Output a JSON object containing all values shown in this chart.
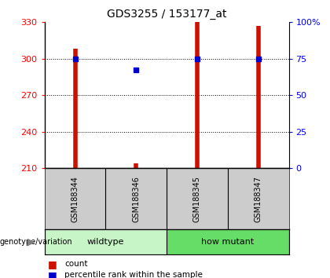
{
  "title": "GDS3255 / 153177_at",
  "samples": [
    "GSM188344",
    "GSM188346",
    "GSM188345",
    "GSM188347"
  ],
  "group_labels": [
    "wildtype",
    "how mutant"
  ],
  "group_colors_light": [
    "#C8F5C8",
    "#66DD66"
  ],
  "y_min": 210,
  "y_max": 330,
  "y_ticks": [
    210,
    240,
    270,
    300,
    330
  ],
  "y2_ticks": [
    0,
    25,
    50,
    75,
    100
  ],
  "y2_labels": [
    "0",
    "25",
    "50",
    "75",
    "100%"
  ],
  "bar_tops": [
    308,
    214,
    330,
    327
  ],
  "bar_color": "#CC1100",
  "percentile_values": [
    300,
    291,
    300,
    300
  ],
  "percentile_color": "#0000CC",
  "background_color": "#FFFFFF",
  "gray_bg": "#CCCCCC",
  "title_fontsize": 10,
  "tick_fontsize": 8,
  "sample_fontsize": 7,
  "group_fontsize": 8,
  "legend_fontsize": 7.5,
  "genotype_label": "genotype/variation",
  "legend_count_label": "count",
  "legend_pct_label": "percentile rank within the sample"
}
